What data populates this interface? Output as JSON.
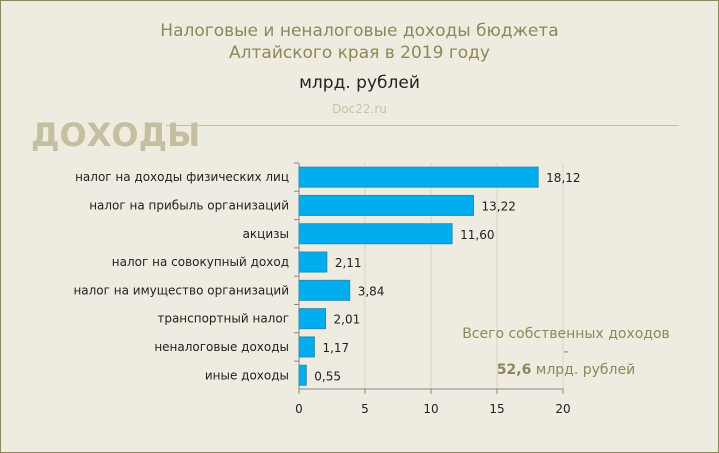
{
  "chart_data": {
    "type": "bar",
    "orientation": "horizontal",
    "title": "Налоговые и неналоговые доходы бюджета Алтайского края в 2019 году",
    "title_lines": [
      "Налоговые и неналоговые доходы бюджета",
      "Алтайского края в 2019 году"
    ],
    "subtitle": "млрд. рублей",
    "source": "Doc22.ru",
    "section": "ДОХОДЫ",
    "categories": [
      "налог на доходы физических лиц",
      "налог на прибыль организаций",
      "акцизы",
      "налог на совокупный доход",
      "налог на имущество организаций",
      "транспортный налог",
      "неналоговые доходы",
      "иные доходы"
    ],
    "values": [
      18.12,
      13.22,
      11.6,
      2.11,
      3.84,
      2.01,
      1.17,
      0.55
    ],
    "value_labels": [
      "18,12",
      "13,22",
      "11,60",
      "2,11",
      "3,84",
      "2,01",
      "1,17",
      "0,55"
    ],
    "xlim": [
      0,
      20
    ],
    "xticks": [
      "0",
      "5",
      "10",
      "15",
      "20"
    ],
    "grid": true,
    "bar_color": "#00aeef",
    "annotation": {
      "line1": "Всего собственных доходов -",
      "value": "52,6",
      "unit": "млрд. рублей"
    }
  }
}
